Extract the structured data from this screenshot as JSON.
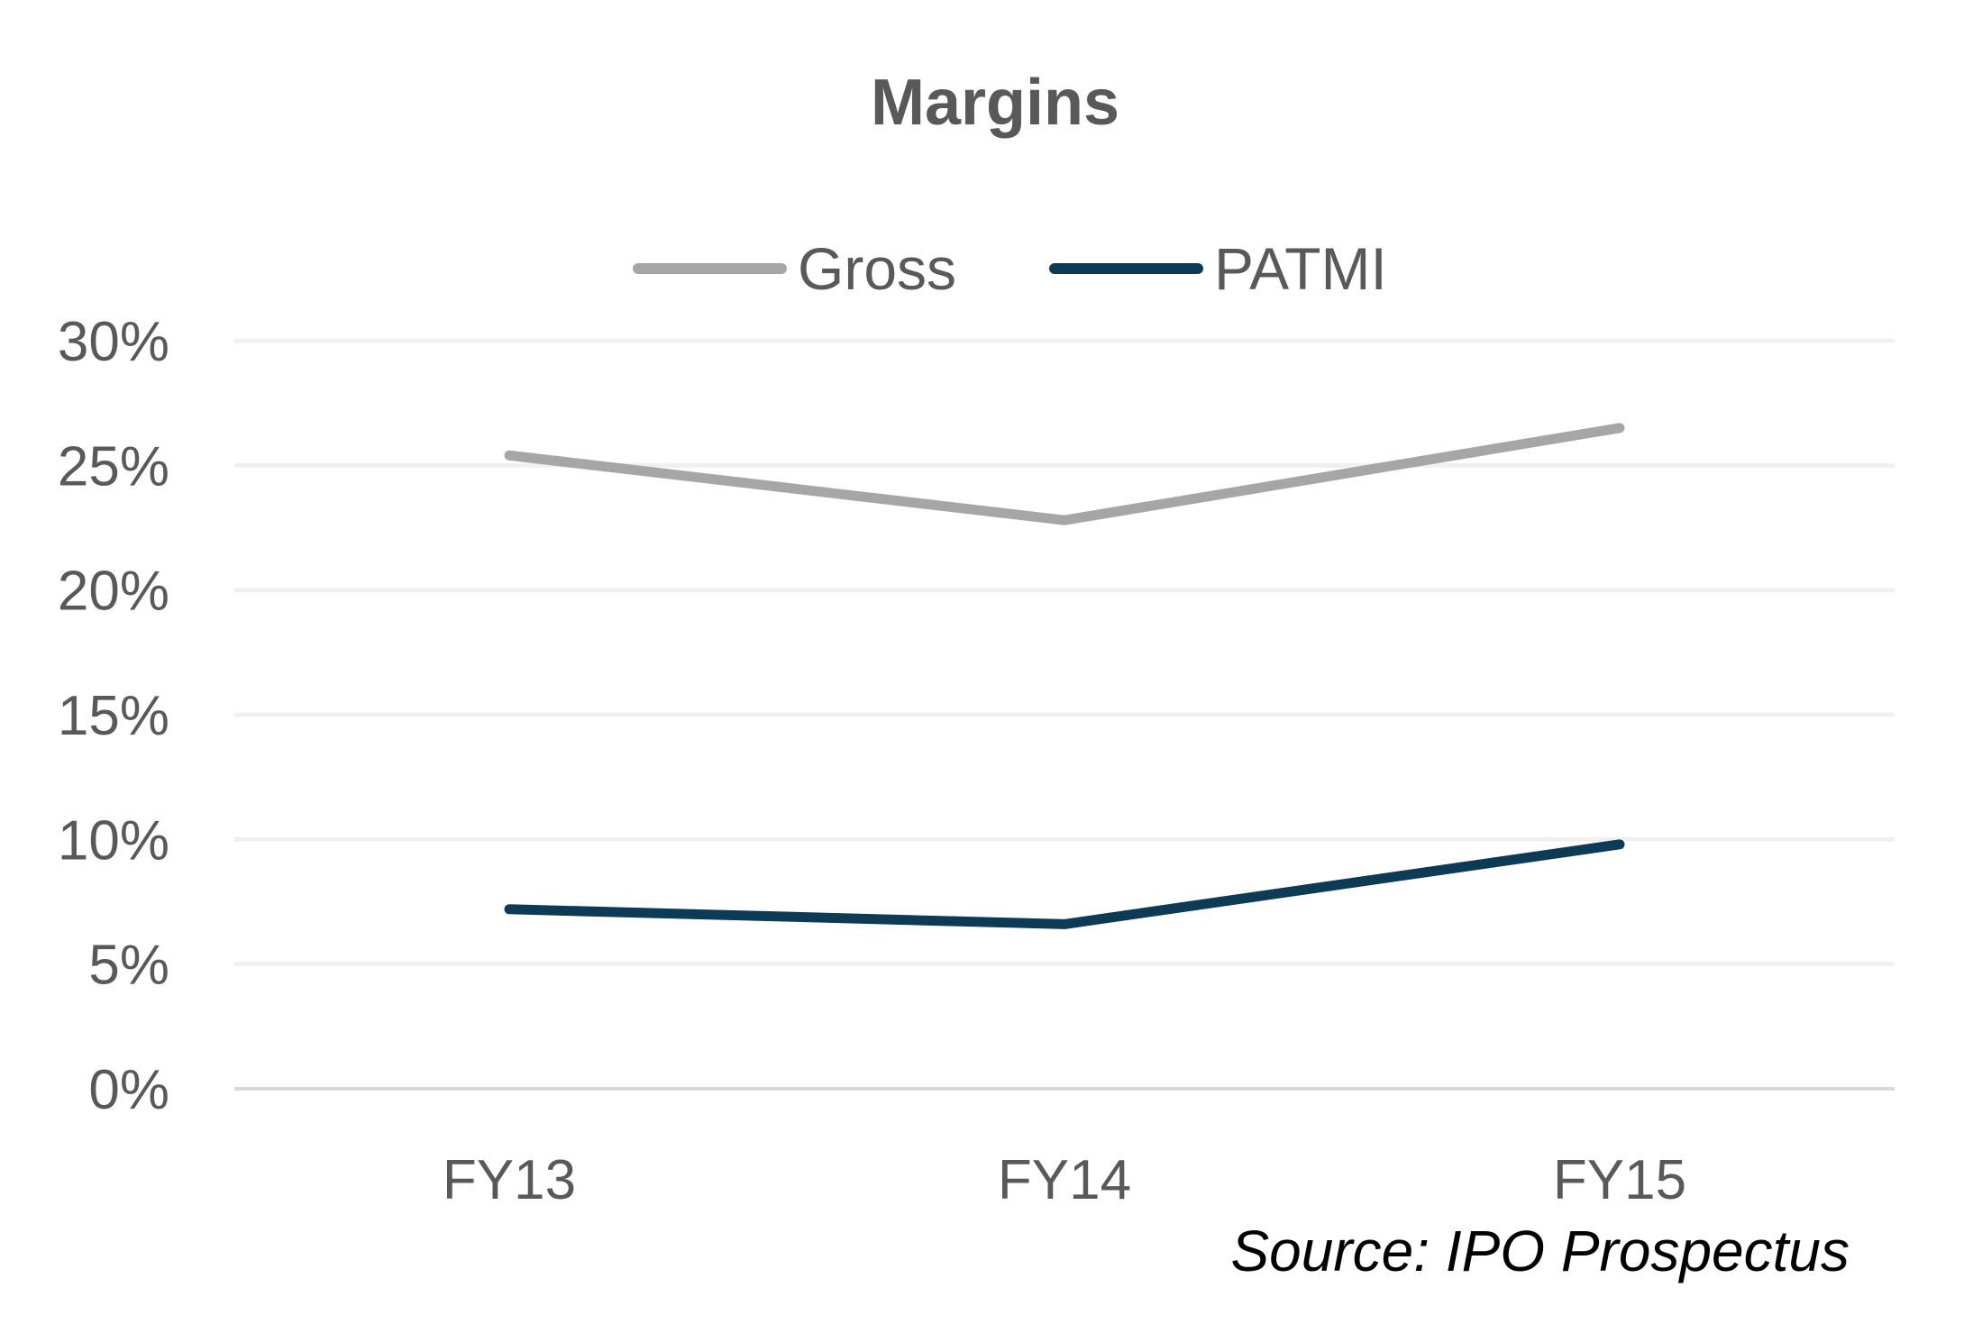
{
  "chart_data": {
    "type": "line",
    "title": "Margins",
    "categories": [
      "FY13",
      "FY14",
      "FY15"
    ],
    "series": [
      {
        "name": "Gross",
        "values": [
          25.4,
          22.8,
          26.5
        ],
        "color": "#A6A6A6"
      },
      {
        "name": "PATMI",
        "values": [
          7.2,
          6.6,
          9.8
        ],
        "color": "#0D3A55"
      }
    ],
    "ylim": [
      0,
      30
    ],
    "yticks": [
      0,
      5,
      10,
      15,
      20,
      25,
      30
    ],
    "ytick_labels": [
      "0%",
      "5%",
      "10%",
      "15%",
      "20%",
      "25%",
      "30%"
    ],
    "grid": true,
    "legend_position": "top",
    "xlabel": "",
    "ylabel": ""
  },
  "source_note": "Source: IPO Prospectus"
}
